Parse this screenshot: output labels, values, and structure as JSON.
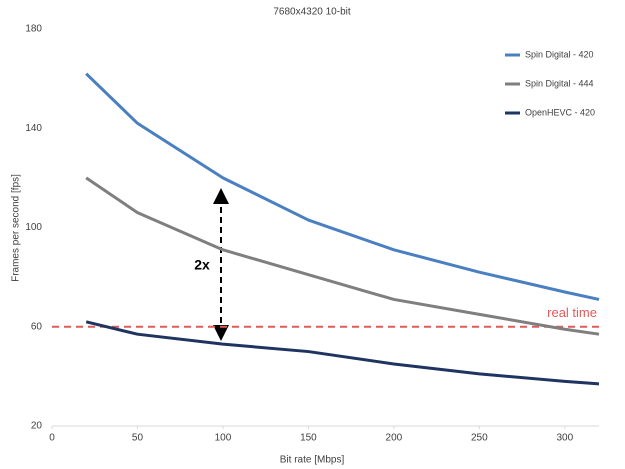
{
  "chart_data": {
    "type": "line",
    "title": "7680x4320 10-bit",
    "x_label": "Bit rate [Mbps]",
    "y_label": "Frames per second [fps]",
    "x": [
      20,
      50,
      100,
      150,
      200,
      250,
      300,
      320
    ],
    "series": [
      {
        "name": "Spin Digital - 420",
        "color": "#4a7fc1",
        "values": [
          162,
          142,
          120,
          103,
          91,
          82,
          74,
          71
        ]
      },
      {
        "name": "Spin Digital - 444",
        "color": "#7f7f7f",
        "values": [
          120,
          106,
          91,
          81,
          71,
          65,
          59,
          57
        ]
      },
      {
        "name": "OpenHEVC  - 420",
        "color": "#1f3461",
        "values": [
          62,
          57,
          53,
          50,
          45,
          41,
          38,
          37
        ]
      }
    ],
    "reference_line": {
      "value": 60,
      "label": "real time",
      "color": "#e05a5a"
    },
    "annotation": "2x",
    "xlim": [
      0,
      320
    ],
    "xticks": [
      0,
      50,
      100,
      150,
      200,
      250,
      300
    ],
    "ylim": [
      20,
      180
    ],
    "yticks": [
      20,
      60,
      100,
      140,
      180
    ],
    "grid": false,
    "legend": "top-right"
  }
}
